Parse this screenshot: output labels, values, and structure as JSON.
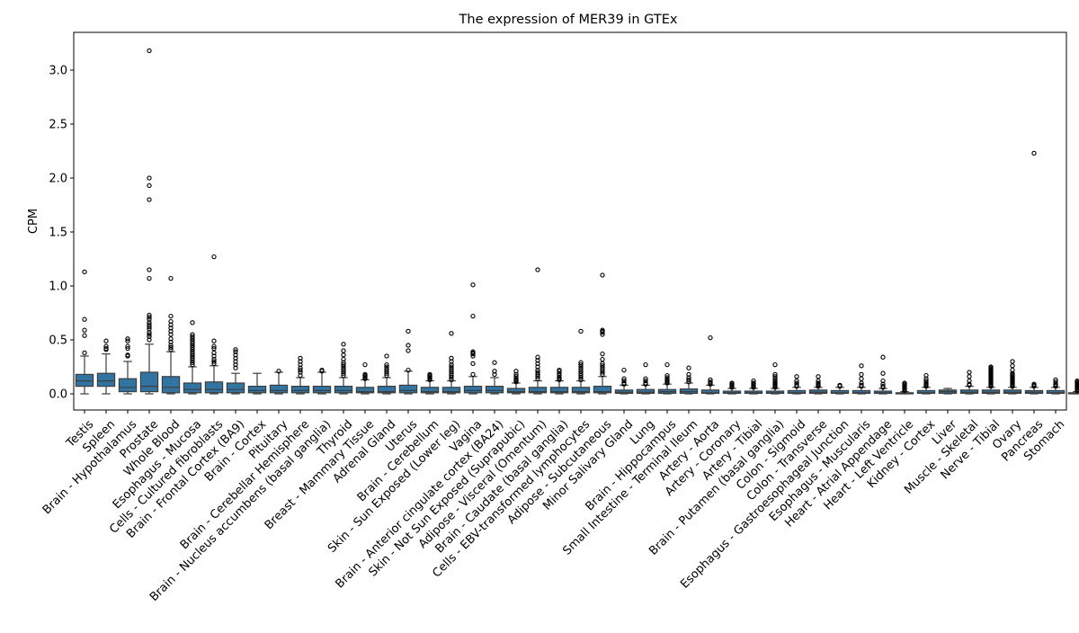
{
  "chart_data": {
    "type": "box",
    "title": "The expression of MER39 in GTEx",
    "xlabel": "",
    "ylabel": "CPM",
    "ylim": [
      -0.15,
      3.35
    ],
    "yticks": [
      0.0,
      0.5,
      1.0,
      1.5,
      2.0,
      2.5,
      3.0
    ],
    "ytick_labels": [
      "0.0",
      "0.5",
      "1.0",
      "1.5",
      "2.0",
      "2.5",
      "3.0"
    ],
    "grid": false,
    "box_color": "#3274a1",
    "edge_color": "#3d3d3d",
    "categories": [
      "Testis",
      "Spleen",
      "Brain - Hypothalamus",
      "Prostate",
      "Whole Blood",
      "Esophagus - Mucosa",
      "Cells - Cultured fibroblasts",
      "Brain - Frontal Cortex (BA9)",
      "Brain - Cortex",
      "Pituitary",
      "Brain - Cerebellar Hemisphere",
      "Brain - Nucleus accumbens (basal ganglia)",
      "Thyroid",
      "Breast - Mammary Tissue",
      "Adrenal Gland",
      "Uterus",
      "Brain - Cerebellum",
      "Skin - Sun Exposed (Lower leg)",
      "Vagina",
      "Brain - Anterior cingulate cortex (BA24)",
      "Skin - Not Sun Exposed (Suprapubic)",
      "Adipose - Visceral (Omentum)",
      "Brain - Caudate (basal ganglia)",
      "Cells - EBV-transformed lymphocytes",
      "Adipose - Subcutaneous",
      "Minor Salivary Gland",
      "Lung",
      "Brain - Hippocampus",
      "Small Intestine - Terminal Ileum",
      "Artery - Aorta",
      "Artery - Coronary",
      "Artery - Tibial",
      "Brain - Putamen (basal ganglia)",
      "Colon - Sigmoid",
      "Colon - Transverse",
      "Esophagus - Gastroesophageal Junction",
      "Esophagus - Muscularis",
      "Heart - Atrial Appendage",
      "Heart - Left Ventricle",
      "Kidney - Cortex",
      "Liver",
      "Muscle - Skeletal",
      "Nerve - Tibial",
      "Ovary",
      "Pancreas",
      "Stomach"
    ],
    "boxes": [
      {
        "q1": 0.07,
        "median": 0.12,
        "q3": 0.18,
        "whisker_low": 0.0,
        "whisker_high": 0.35,
        "outliers": [
          0.38,
          0.54,
          0.59,
          0.69,
          1.13
        ]
      },
      {
        "q1": 0.07,
        "median": 0.12,
        "q3": 0.19,
        "whisker_low": 0.0,
        "whisker_high": 0.37,
        "outliers": [
          0.41,
          0.42,
          0.44,
          0.49
        ]
      },
      {
        "q1": 0.02,
        "median": 0.06,
        "q3": 0.14,
        "whisker_low": 0.0,
        "whisker_high": 0.3,
        "outliers": [
          0.35,
          0.36,
          0.42,
          0.44,
          0.49,
          0.51
        ]
      },
      {
        "q1": 0.02,
        "median": 0.07,
        "q3": 0.2,
        "whisker_low": 0.0,
        "whisker_high": 0.46,
        "outliers": [
          0.5,
          0.53,
          0.55,
          0.57,
          0.6,
          0.62,
          0.64,
          0.66,
          0.69,
          0.71,
          0.73,
          1.07,
          1.15,
          1.8,
          1.93,
          2.0,
          3.18
        ]
      },
      {
        "q1": 0.01,
        "median": 0.06,
        "q3": 0.16,
        "whisker_low": 0.0,
        "whisker_high": 0.39,
        "outliers": [
          0.41,
          0.43,
          0.45,
          0.48,
          0.51,
          0.55,
          0.58,
          0.61,
          0.64,
          0.67,
          0.72,
          1.07
        ]
      },
      {
        "q1": 0.01,
        "median": 0.04,
        "q3": 0.1,
        "whisker_low": 0.0,
        "whisker_high": 0.25,
        "outliers": [
          0.27,
          0.29,
          0.31,
          0.33,
          0.35,
          0.37,
          0.39,
          0.41,
          0.43,
          0.45,
          0.47,
          0.49,
          0.51,
          0.53,
          0.55,
          0.66
        ]
      },
      {
        "q1": 0.01,
        "median": 0.04,
        "q3": 0.11,
        "whisker_low": 0.0,
        "whisker_high": 0.26,
        "outliers": [
          0.28,
          0.3,
          0.32,
          0.35,
          0.38,
          0.42,
          0.44,
          0.49,
          1.27
        ]
      },
      {
        "q1": 0.01,
        "median": 0.04,
        "q3": 0.1,
        "whisker_low": 0.0,
        "whisker_high": 0.19,
        "outliers": [
          0.24,
          0.27,
          0.3,
          0.33,
          0.36,
          0.39,
          0.41
        ]
      },
      {
        "q1": 0.01,
        "median": 0.03,
        "q3": 0.07,
        "whisker_low": 0.0,
        "whisker_high": 0.19,
        "outliers": []
      },
      {
        "q1": 0.01,
        "median": 0.03,
        "q3": 0.08,
        "whisker_low": 0.0,
        "whisker_high": 0.2,
        "outliers": [
          0.21
        ]
      },
      {
        "q1": 0.01,
        "median": 0.03,
        "q3": 0.07,
        "whisker_low": 0.0,
        "whisker_high": 0.15,
        "outliers": [
          0.17,
          0.2,
          0.22,
          0.24,
          0.27,
          0.3,
          0.33
        ]
      },
      {
        "q1": 0.01,
        "median": 0.03,
        "q3": 0.07,
        "whisker_low": 0.0,
        "whisker_high": 0.2,
        "outliers": [
          0.21,
          0.22
        ]
      },
      {
        "q1": 0.01,
        "median": 0.03,
        "q3": 0.07,
        "whisker_low": 0.0,
        "whisker_high": 0.15,
        "outliers": [
          0.17,
          0.19,
          0.21,
          0.23,
          0.25,
          0.27,
          0.29,
          0.32,
          0.36,
          0.4,
          0.46
        ]
      },
      {
        "q1": 0.01,
        "median": 0.02,
        "q3": 0.06,
        "whisker_low": 0.0,
        "whisker_high": 0.13,
        "outliers": [
          0.14,
          0.15,
          0.16,
          0.17,
          0.18,
          0.27
        ]
      },
      {
        "q1": 0.01,
        "median": 0.02,
        "q3": 0.07,
        "whisker_low": 0.0,
        "whisker_high": 0.15,
        "outliers": [
          0.17,
          0.19,
          0.21,
          0.23,
          0.25,
          0.27,
          0.35
        ]
      },
      {
        "q1": 0.01,
        "median": 0.03,
        "q3": 0.08,
        "whisker_low": 0.0,
        "whisker_high": 0.21,
        "outliers": [
          0.22,
          0.4,
          0.45,
          0.58
        ]
      },
      {
        "q1": 0.01,
        "median": 0.02,
        "q3": 0.06,
        "whisker_low": 0.0,
        "whisker_high": 0.12,
        "outliers": [
          0.13,
          0.14,
          0.15,
          0.16,
          0.17,
          0.18
        ]
      },
      {
        "q1": 0.01,
        "median": 0.02,
        "q3": 0.06,
        "whisker_low": 0.0,
        "whisker_high": 0.12,
        "outliers": [
          0.13,
          0.15,
          0.17,
          0.19,
          0.21,
          0.23,
          0.25,
          0.27,
          0.3,
          0.33,
          0.56
        ]
      },
      {
        "q1": 0.01,
        "median": 0.03,
        "q3": 0.07,
        "whisker_low": 0.0,
        "whisker_high": 0.16,
        "outliers": [
          0.18,
          0.28,
          0.35,
          0.37,
          0.38,
          0.39,
          0.72,
          1.01
        ]
      },
      {
        "q1": 0.01,
        "median": 0.03,
        "q3": 0.07,
        "whisker_low": 0.0,
        "whisker_high": 0.15,
        "outliers": [
          0.18,
          0.21,
          0.29
        ]
      },
      {
        "q1": 0.01,
        "median": 0.02,
        "q3": 0.05,
        "whisker_low": 0.0,
        "whisker_high": 0.1,
        "outliers": [
          0.11,
          0.12,
          0.13,
          0.14,
          0.16,
          0.18,
          0.21
        ]
      },
      {
        "q1": 0.01,
        "median": 0.02,
        "q3": 0.06,
        "whisker_low": 0.0,
        "whisker_high": 0.12,
        "outliers": [
          0.14,
          0.16,
          0.18,
          0.2,
          0.22,
          0.25,
          0.28,
          0.31,
          0.34,
          1.15
        ]
      },
      {
        "q1": 0.01,
        "median": 0.02,
        "q3": 0.06,
        "whisker_low": 0.0,
        "whisker_high": 0.12,
        "outliers": [
          0.13,
          0.14,
          0.15,
          0.17,
          0.19,
          0.21,
          0.22
        ]
      },
      {
        "q1": 0.01,
        "median": 0.02,
        "q3": 0.06,
        "whisker_low": 0.0,
        "whisker_high": 0.12,
        "outliers": [
          0.13,
          0.15,
          0.17,
          0.19,
          0.21,
          0.23,
          0.25,
          0.27,
          0.29,
          0.58
        ]
      },
      {
        "q1": 0.01,
        "median": 0.02,
        "q3": 0.07,
        "whisker_low": 0.0,
        "whisker_high": 0.16,
        "outliers": [
          0.18,
          0.2,
          0.22,
          0.24,
          0.26,
          0.28,
          0.32,
          0.37,
          0.55,
          0.57,
          0.58,
          0.59,
          1.1
        ]
      },
      {
        "q1": 0.005,
        "median": 0.015,
        "q3": 0.035,
        "whisker_low": 0.0,
        "whisker_high": 0.08,
        "outliers": [
          0.09,
          0.1,
          0.12,
          0.14,
          0.22
        ]
      },
      {
        "q1": 0.005,
        "median": 0.015,
        "q3": 0.04,
        "whisker_low": 0.0,
        "whisker_high": 0.08,
        "outliers": [
          0.09,
          0.1,
          0.12,
          0.14,
          0.27
        ]
      },
      {
        "q1": 0.005,
        "median": 0.02,
        "q3": 0.04,
        "whisker_low": 0.0,
        "whisker_high": 0.09,
        "outliers": [
          0.1,
          0.11,
          0.12,
          0.13,
          0.15,
          0.17,
          0.27
        ]
      },
      {
        "q1": 0.005,
        "median": 0.02,
        "q3": 0.045,
        "whisker_low": 0.0,
        "whisker_high": 0.1,
        "outliers": [
          0.11,
          0.13,
          0.15,
          0.18,
          0.24
        ]
      },
      {
        "q1": 0.005,
        "median": 0.01,
        "q3": 0.035,
        "whisker_low": 0.0,
        "whisker_high": 0.08,
        "outliers": [
          0.09,
          0.1,
          0.11,
          0.13,
          0.52
        ]
      },
      {
        "q1": 0.005,
        "median": 0.01,
        "q3": 0.025,
        "whisker_low": 0.0,
        "whisker_high": 0.05,
        "outliers": [
          0.06,
          0.07,
          0.08,
          0.09,
          0.1
        ]
      },
      {
        "q1": 0.005,
        "median": 0.01,
        "q3": 0.025,
        "whisker_low": 0.0,
        "whisker_high": 0.05,
        "outliers": [
          0.06,
          0.07,
          0.08,
          0.09,
          0.1,
          0.12
        ]
      },
      {
        "q1": 0.005,
        "median": 0.01,
        "q3": 0.025,
        "whisker_low": 0.0,
        "whisker_high": 0.05,
        "outliers": [
          0.06,
          0.07,
          0.08,
          0.09,
          0.1,
          0.11,
          0.12,
          0.14,
          0.16,
          0.18,
          0.27
        ]
      },
      {
        "q1": 0.005,
        "median": 0.01,
        "q3": 0.03,
        "whisker_low": 0.0,
        "whisker_high": 0.06,
        "outliers": [
          0.07,
          0.08,
          0.1,
          0.12,
          0.16
        ]
      },
      {
        "q1": 0.005,
        "median": 0.015,
        "q3": 0.035,
        "whisker_low": 0.0,
        "whisker_high": 0.06,
        "outliers": [
          0.07,
          0.08,
          0.09,
          0.1,
          0.12,
          0.16
        ]
      },
      {
        "q1": 0.005,
        "median": 0.01,
        "q3": 0.03,
        "whisker_low": 0.0,
        "whisker_high": 0.06,
        "outliers": [
          0.07,
          0.08
        ]
      },
      {
        "q1": 0.005,
        "median": 0.01,
        "q3": 0.03,
        "whisker_low": 0.0,
        "whisker_high": 0.06,
        "outliers": [
          0.07,
          0.08,
          0.1,
          0.14,
          0.18,
          0.26
        ]
      },
      {
        "q1": 0.005,
        "median": 0.01,
        "q3": 0.025,
        "whisker_low": 0.0,
        "whisker_high": 0.05,
        "outliers": [
          0.06,
          0.07,
          0.09,
          0.12,
          0.19,
          0.34
        ]
      },
      {
        "q1": 0.0,
        "median": 0.005,
        "q3": 0.01,
        "whisker_low": 0.0,
        "whisker_high": 0.02,
        "outliers": [
          0.03,
          0.04,
          0.05,
          0.06,
          0.07,
          0.08,
          0.09,
          0.1
        ]
      },
      {
        "q1": 0.005,
        "median": 0.01,
        "q3": 0.03,
        "whisker_low": 0.0,
        "whisker_high": 0.06,
        "outliers": [
          0.07,
          0.08,
          0.09,
          0.1,
          0.12,
          0.14,
          0.17
        ]
      },
      {
        "q1": 0.005,
        "median": 0.02,
        "q3": 0.035,
        "whisker_low": 0.0,
        "whisker_high": 0.05,
        "outliers": []
      },
      {
        "q1": 0.005,
        "median": 0.015,
        "q3": 0.035,
        "whisker_low": 0.0,
        "whisker_high": 0.07,
        "outliers": [
          0.08,
          0.09,
          0.12,
          0.16,
          0.2
        ]
      },
      {
        "q1": 0.005,
        "median": 0.015,
        "q3": 0.035,
        "whisker_low": 0.0,
        "whisker_high": 0.06,
        "outliers": [
          0.07,
          0.08,
          0.09,
          0.1,
          0.11,
          0.12,
          0.13,
          0.14,
          0.15,
          0.16,
          0.17,
          0.18,
          0.19,
          0.2,
          0.21,
          0.22,
          0.23,
          0.24,
          0.25
        ]
      },
      {
        "q1": 0.005,
        "median": 0.015,
        "q3": 0.035,
        "whisker_low": 0.0,
        "whisker_high": 0.06,
        "outliers": [
          0.07,
          0.08,
          0.09,
          0.1,
          0.11,
          0.12,
          0.13,
          0.14,
          0.15,
          0.16,
          0.17,
          0.18,
          0.19,
          0.22,
          0.26,
          0.3
        ]
      },
      {
        "q1": 0.005,
        "median": 0.015,
        "q3": 0.03,
        "whisker_low": 0.0,
        "whisker_high": 0.06,
        "outliers": [
          0.07,
          0.08,
          0.09,
          2.23
        ]
      },
      {
        "q1": 0.005,
        "median": 0.01,
        "q3": 0.03,
        "whisker_low": 0.0,
        "whisker_high": 0.06,
        "outliers": [
          0.07,
          0.08,
          0.09,
          0.11,
          0.13
        ]
      },
      {
        "q1": 0.0,
        "median": 0.005,
        "q3": 0.01,
        "whisker_low": 0.0,
        "whisker_high": 0.02,
        "outliers": [
          0.03,
          0.04,
          0.05,
          0.06,
          0.07,
          0.08,
          0.09,
          0.1,
          0.11,
          0.12
        ]
      }
    ]
  }
}
